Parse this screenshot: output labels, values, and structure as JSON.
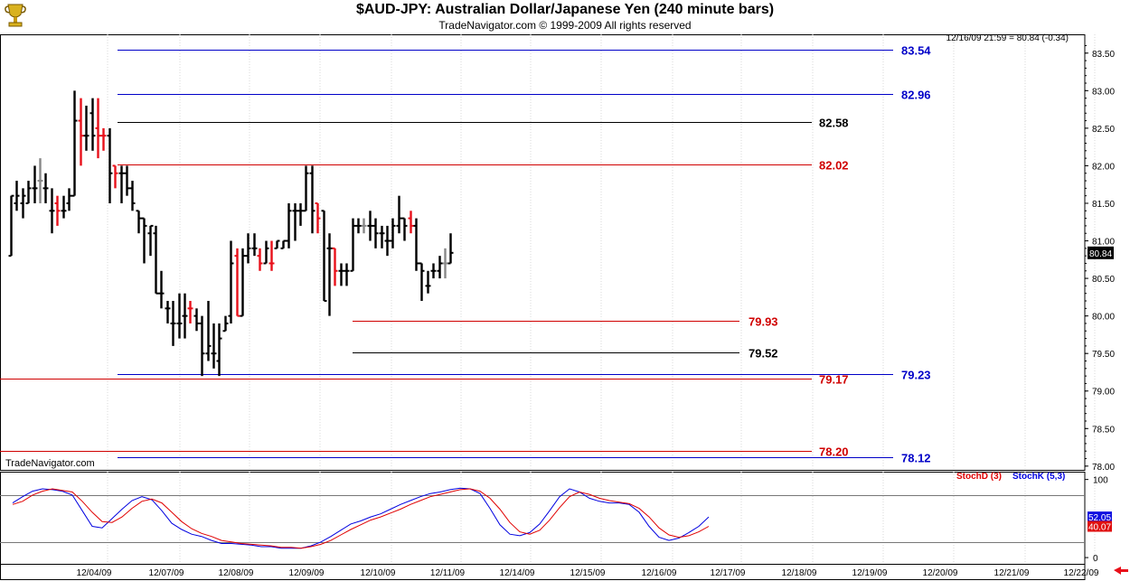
{
  "header": {
    "title": "$AUD-JPY:  Australian Dollar/Japanese Yen  (240 minute bars)",
    "subtitle": "TradeNavigator.com © 1999-2009 All rights reserved",
    "quote": "12/16/09 21:59 = 80.84 (-0.34)",
    "watermark": "TradeNavigator.com",
    "logo_icon": "trophy-icon"
  },
  "colors": {
    "up_bar": "#000000",
    "down_bar": "#e8101a",
    "neutral_bar": "#888888",
    "blue_level": "#0000c8",
    "red_level": "#d00000",
    "black_level": "#000000",
    "stoch_d": "#e00000",
    "stoch_k": "#0000e0"
  },
  "chart_data": [
    {
      "type": "ohlc",
      "y_axis_ticks": [
        "83.50",
        "83.00",
        "82.50",
        "82.00",
        "81.50",
        "81.00",
        "80.50",
        "80.00",
        "79.50",
        "79.00",
        "78.50",
        "78.00"
      ],
      "ylim": [
        77.95,
        83.75
      ],
      "last_price_label": "80.84",
      "x_labels": [
        "12/04/09",
        "12/07/09",
        "12/08/09",
        "12/09/09",
        "12/10/09",
        "12/11/09",
        "12/14/09",
        "12/15/09",
        "12/16/09",
        "12/17/09",
        "12/18/09",
        "12/19/09",
        "12/20/09",
        "12/21/09",
        "12/22/09"
      ],
      "levels": [
        {
          "label": "83.54",
          "value": 83.54,
          "color": "blue"
        },
        {
          "label": "82.96",
          "value": 82.96,
          "color": "blue"
        },
        {
          "label": "82.58",
          "value": 82.58,
          "color": "black"
        },
        {
          "label": "82.02",
          "value": 82.02,
          "color": "red"
        },
        {
          "label": "79.93",
          "value": 79.93,
          "color": "red"
        },
        {
          "label": "79.52",
          "value": 79.52,
          "color": "black"
        },
        {
          "label": "79.23",
          "value": 79.23,
          "color": "blue"
        },
        {
          "label": "79.17",
          "value": 79.17,
          "color": "red"
        },
        {
          "label": "78.20",
          "value": 78.2,
          "color": "red"
        },
        {
          "label": "78.12",
          "value": 78.12,
          "color": "blue"
        }
      ],
      "bars": [
        {
          "o": 80.8,
          "h": 81.6,
          "l": 80.8,
          "c": 81.6,
          "color": "black"
        },
        {
          "o": 81.5,
          "h": 81.8,
          "l": 81.4,
          "c": 81.6,
          "color": "black"
        },
        {
          "o": 81.5,
          "h": 81.7,
          "l": 81.3,
          "c": 81.6,
          "color": "black"
        },
        {
          "o": 81.5,
          "h": 81.8,
          "l": 81.5,
          "c": 81.7,
          "color": "black"
        },
        {
          "o": 81.7,
          "h": 82.0,
          "l": 81.5,
          "c": 81.7,
          "color": "black"
        },
        {
          "o": 81.8,
          "h": 82.1,
          "l": 81.5,
          "c": 81.8,
          "color": "gray"
        },
        {
          "o": 81.7,
          "h": 81.9,
          "l": 81.5,
          "c": 81.7,
          "color": "black"
        },
        {
          "o": 81.4,
          "h": 81.7,
          "l": 81.1,
          "c": 81.4,
          "color": "black"
        },
        {
          "o": 81.5,
          "h": 81.6,
          "l": 81.2,
          "c": 81.4,
          "color": "red"
        },
        {
          "o": 81.4,
          "h": 81.6,
          "l": 81.3,
          "c": 81.4,
          "color": "black"
        },
        {
          "o": 81.5,
          "h": 81.7,
          "l": 81.4,
          "c": 81.6,
          "color": "black"
        },
        {
          "o": 81.6,
          "h": 83.0,
          "l": 81.6,
          "c": 82.6,
          "color": "black"
        },
        {
          "o": 82.6,
          "h": 82.9,
          "l": 82.0,
          "c": 82.4,
          "color": "red"
        },
        {
          "o": 82.4,
          "h": 82.8,
          "l": 82.2,
          "c": 82.4,
          "color": "black"
        },
        {
          "o": 82.7,
          "h": 82.9,
          "l": 82.2,
          "c": 82.4,
          "color": "black"
        },
        {
          "o": 82.5,
          "h": 82.9,
          "l": 82.1,
          "c": 82.4,
          "color": "red"
        },
        {
          "o": 82.4,
          "h": 82.5,
          "l": 82.2,
          "c": 82.4,
          "color": "red"
        },
        {
          "o": 82.4,
          "h": 82.5,
          "l": 81.5,
          "c": 81.9,
          "color": "black"
        },
        {
          "o": 82.0,
          "h": 82.0,
          "l": 81.7,
          "c": 81.9,
          "color": "red"
        },
        {
          "o": 81.9,
          "h": 82.0,
          "l": 81.5,
          "c": 81.9,
          "color": "black"
        },
        {
          "o": 81.9,
          "h": 82.0,
          "l": 81.6,
          "c": 81.7,
          "color": "black"
        },
        {
          "o": 81.7,
          "h": 81.8,
          "l": 81.4,
          "c": 81.5,
          "color": "black"
        },
        {
          "o": 81.4,
          "h": 81.4,
          "l": 81.1,
          "c": 81.3,
          "color": "black"
        },
        {
          "o": 81.3,
          "h": 81.3,
          "l": 80.7,
          "c": 81.2,
          "color": "black"
        },
        {
          "o": 81.1,
          "h": 81.2,
          "l": 80.8,
          "c": 81.2,
          "color": "black"
        },
        {
          "o": 81.1,
          "h": 81.2,
          "l": 80.3,
          "c": 80.3,
          "color": "black"
        },
        {
          "o": 80.3,
          "h": 80.6,
          "l": 80.1,
          "c": 80.3,
          "color": "black"
        },
        {
          "o": 80.1,
          "h": 80.2,
          "l": 79.9,
          "c": 80.1,
          "color": "black"
        },
        {
          "o": 79.9,
          "h": 80.2,
          "l": 79.6,
          "c": 79.9,
          "color": "black"
        },
        {
          "o": 79.9,
          "h": 80.3,
          "l": 79.7,
          "c": 79.9,
          "color": "black"
        },
        {
          "o": 80.0,
          "h": 80.3,
          "l": 79.7,
          "c": 80.0,
          "color": "black"
        },
        {
          "o": 80.1,
          "h": 80.2,
          "l": 79.9,
          "c": 80.1,
          "color": "red"
        },
        {
          "o": 80.0,
          "h": 80.1,
          "l": 79.8,
          "c": 79.9,
          "color": "black"
        },
        {
          "o": 79.9,
          "h": 80.0,
          "l": 79.2,
          "c": 79.5,
          "color": "black"
        },
        {
          "o": 79.5,
          "h": 80.2,
          "l": 79.4,
          "c": 79.6,
          "color": "black"
        },
        {
          "o": 79.5,
          "h": 79.9,
          "l": 79.3,
          "c": 79.5,
          "color": "black"
        },
        {
          "o": 79.4,
          "h": 79.9,
          "l": 79.2,
          "c": 79.7,
          "color": "black"
        },
        {
          "o": 79.8,
          "h": 80.0,
          "l": 79.8,
          "c": 79.9,
          "color": "black"
        },
        {
          "o": 80.0,
          "h": 81.0,
          "l": 79.9,
          "c": 80.7,
          "color": "black"
        },
        {
          "o": 80.8,
          "h": 80.9,
          "l": 80.0,
          "c": 80.0,
          "color": "red"
        },
        {
          "o": 80.0,
          "h": 80.9,
          "l": 80.0,
          "c": 80.8,
          "color": "black"
        },
        {
          "o": 80.8,
          "h": 81.1,
          "l": 80.7,
          "c": 80.9,
          "color": "black"
        },
        {
          "o": 80.9,
          "h": 81.1,
          "l": 80.8,
          "c": 80.9,
          "color": "black"
        },
        {
          "o": 80.8,
          "h": 80.9,
          "l": 80.6,
          "c": 80.7,
          "color": "red"
        },
        {
          "o": 80.7,
          "h": 81.0,
          "l": 80.7,
          "c": 80.9,
          "color": "black"
        },
        {
          "o": 80.7,
          "h": 81.0,
          "l": 80.6,
          "c": 80.7,
          "color": "red"
        },
        {
          "o": 80.9,
          "h": 81.0,
          "l": 80.9,
          "c": 81.0,
          "color": "black"
        },
        {
          "o": 80.9,
          "h": 81.0,
          "l": 80.9,
          "c": 81.0,
          "color": "black"
        },
        {
          "o": 81.0,
          "h": 81.5,
          "l": 80.9,
          "c": 81.4,
          "color": "black"
        },
        {
          "o": 81.4,
          "h": 81.5,
          "l": 81.0,
          "c": 81.4,
          "color": "black"
        },
        {
          "o": 81.4,
          "h": 81.5,
          "l": 81.2,
          "c": 81.4,
          "color": "black"
        },
        {
          "o": 81.4,
          "h": 82.0,
          "l": 81.4,
          "c": 81.9,
          "color": "black"
        },
        {
          "o": 81.9,
          "h": 82.0,
          "l": 81.1,
          "c": 81.4,
          "color": "black"
        },
        {
          "o": 81.5,
          "h": 81.5,
          "l": 81.1,
          "c": 81.3,
          "color": "red"
        },
        {
          "o": 81.4,
          "h": 81.4,
          "l": 80.2,
          "c": 80.2,
          "color": "black"
        },
        {
          "o": 80.9,
          "h": 81.1,
          "l": 80.0,
          "c": 80.9,
          "color": "black"
        },
        {
          "o": 80.9,
          "h": 80.9,
          "l": 80.4,
          "c": 80.6,
          "color": "red"
        },
        {
          "o": 80.6,
          "h": 80.7,
          "l": 80.4,
          "c": 80.6,
          "color": "black"
        },
        {
          "o": 80.6,
          "h": 80.7,
          "l": 80.4,
          "c": 80.6,
          "color": "black"
        },
        {
          "o": 80.6,
          "h": 81.3,
          "l": 80.6,
          "c": 81.2,
          "color": "black"
        },
        {
          "o": 81.2,
          "h": 81.3,
          "l": 81.1,
          "c": 81.2,
          "color": "black"
        },
        {
          "o": 81.2,
          "h": 81.3,
          "l": 81.1,
          "c": 81.2,
          "color": "gray"
        },
        {
          "o": 81.2,
          "h": 81.4,
          "l": 81.0,
          "c": 81.2,
          "color": "black"
        },
        {
          "o": 81.2,
          "h": 81.3,
          "l": 80.9,
          "c": 81.1,
          "color": "black"
        },
        {
          "o": 81.1,
          "h": 81.2,
          "l": 80.9,
          "c": 81.1,
          "color": "black"
        },
        {
          "o": 81.0,
          "h": 81.2,
          "l": 80.8,
          "c": 81.0,
          "color": "black"
        },
        {
          "o": 81.0,
          "h": 81.3,
          "l": 80.9,
          "c": 81.2,
          "color": "black"
        },
        {
          "o": 81.2,
          "h": 81.6,
          "l": 81.1,
          "c": 81.3,
          "color": "black"
        },
        {
          "o": 81.3,
          "h": 81.3,
          "l": 81.0,
          "c": 81.2,
          "color": "black"
        },
        {
          "o": 81.3,
          "h": 81.4,
          "l": 81.1,
          "c": 81.2,
          "color": "red"
        },
        {
          "o": 81.2,
          "h": 81.3,
          "l": 80.6,
          "c": 80.7,
          "color": "black"
        },
        {
          "o": 80.7,
          "h": 80.7,
          "l": 80.2,
          "c": 80.6,
          "color": "black"
        },
        {
          "o": 80.4,
          "h": 80.6,
          "l": 80.3,
          "c": 80.4,
          "color": "black"
        },
        {
          "o": 80.6,
          "h": 80.7,
          "l": 80.5,
          "c": 80.6,
          "color": "black"
        },
        {
          "o": 80.6,
          "h": 80.8,
          "l": 80.5,
          "c": 80.7,
          "color": "black"
        },
        {
          "o": 80.7,
          "h": 80.9,
          "l": 80.5,
          "c": 80.7,
          "color": "gray"
        },
        {
          "o": 80.7,
          "h": 81.1,
          "l": 80.7,
          "c": 80.84,
          "color": "black"
        }
      ]
    },
    {
      "type": "line",
      "legend": [
        {
          "name": "StochD (3)",
          "color": "red"
        },
        {
          "name": "StochK (5,3)",
          "color": "blue"
        }
      ],
      "y_axis_ticks": [
        "100",
        "0"
      ],
      "ylim": [
        -8,
        110
      ],
      "reference_lines": [
        80,
        20
      ],
      "last_value_labels": [
        "52.05",
        "40.07"
      ],
      "series": [
        {
          "name": "StochK (5,3)",
          "color": "blue",
          "values": [
            70,
            78,
            85,
            88,
            87,
            85,
            80,
            60,
            40,
            38,
            50,
            62,
            73,
            78,
            74,
            60,
            44,
            36,
            30,
            27,
            22,
            18,
            18,
            17,
            16,
            14,
            14,
            12,
            12,
            12,
            15,
            20,
            27,
            35,
            43,
            47,
            52,
            56,
            62,
            68,
            73,
            78,
            82,
            84,
            87,
            89,
            88,
            82,
            63,
            42,
            30,
            28,
            32,
            43,
            60,
            78,
            88,
            84,
            76,
            72,
            70,
            70,
            68,
            58,
            40,
            26,
            22,
            25,
            32,
            40,
            52
          ]
        },
        {
          "name": "StochD (3)",
          "color": "red",
          "values": [
            68,
            72,
            80,
            85,
            88,
            86,
            84,
            72,
            58,
            46,
            45,
            52,
            63,
            72,
            75,
            70,
            58,
            46,
            37,
            31,
            27,
            22,
            20,
            18,
            17,
            16,
            15,
            13,
            13,
            12,
            14,
            17,
            22,
            29,
            36,
            42,
            48,
            52,
            57,
            62,
            68,
            73,
            78,
            81,
            84,
            87,
            88,
            85,
            76,
            62,
            45,
            33,
            30,
            35,
            48,
            64,
            78,
            84,
            81,
            76,
            73,
            71,
            69,
            63,
            52,
            38,
            29,
            26,
            28,
            33,
            40
          ]
        }
      ]
    }
  ]
}
